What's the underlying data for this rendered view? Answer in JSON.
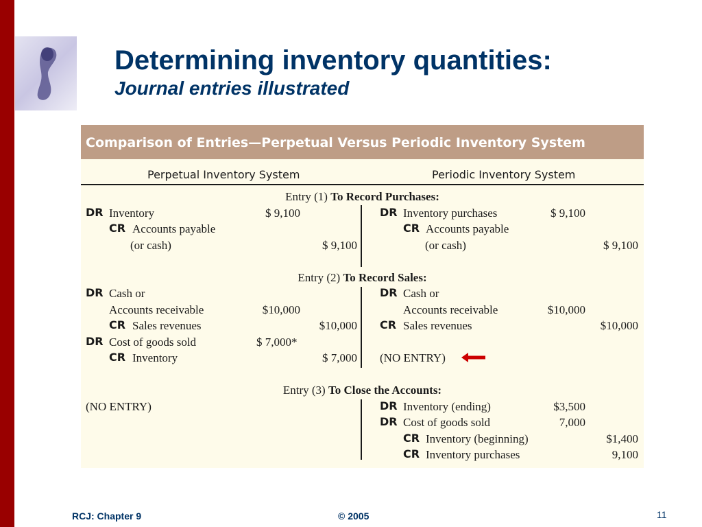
{
  "slide": {
    "title": "Determining inventory quantities:",
    "subtitle": "Journal entries illustrated"
  },
  "table": {
    "caption": "Comparison of Entries—Perpetual Versus Periodic Inventory System",
    "col_perpetual": "Perpetual Inventory System",
    "col_periodic": "Periodic Inventory System",
    "entry1": {
      "prefix": "Entry (1)",
      "label": "To Record Purchases:"
    },
    "entry2": {
      "prefix": "Entry (2)",
      "label": "To Record Sales:"
    },
    "entry3": {
      "prefix": "Entry (3)",
      "label": "To Close the Accounts:"
    },
    "dr": "DR",
    "cr": "CR",
    "perp": {
      "e1_inventory": "Inventory",
      "e1_inventory_amt": "$  9,100",
      "e1_ap": "Accounts payable",
      "e1_or_cash": "(or cash)",
      "e1_ap_amt": "$  9,100",
      "e2_cash_or": "Cash or",
      "e2_ar": "Accounts receivable",
      "e2_ar_amt": "$10,000",
      "e2_sales": "Sales revenues",
      "e2_sales_amt": "$10,000",
      "e2_cogs": "Cost of goods sold",
      "e2_cogs_amt": "$  7,000*",
      "e2_inventory": "Inventory",
      "e2_inventory_amt": "$  7,000",
      "e3_no_entry": "(NO ENTRY)"
    },
    "peri": {
      "e1_purchases": "Inventory purchases",
      "e1_purchases_amt": "$  9,100",
      "e1_ap": "Accounts payable",
      "e1_or_cash": "(or cash)",
      "e1_ap_amt": "$  9,100",
      "e2_cash_or": "Cash or",
      "e2_ar": "Accounts receivable",
      "e2_ar_amt": "$10,000",
      "e2_sales": "Sales revenues",
      "e2_sales_amt": "$10,000",
      "e2_no_entry": "(NO ENTRY)",
      "e3_inv_ending": "Inventory (ending)",
      "e3_inv_ending_amt": "$3,500",
      "e3_cogs": "Cost of goods sold",
      "e3_cogs_amt": "7,000",
      "e3_inv_beginning": "Inventory (beginning)",
      "e3_inv_beginning_amt": "$1,400",
      "e3_purchases": "Inventory purchases",
      "e3_purchases_amt": "9,100"
    }
  },
  "footer": {
    "left": "RCJ: Chapter 9",
    "center": "© 2005",
    "page": "11"
  },
  "colors": {
    "title": "#003366",
    "left_bar": "#990000",
    "table_header": "#be9d86",
    "table_body": "#fefbea",
    "arrow": "#cc0000"
  },
  "icons": {
    "logo": "keyhole-figure-logo",
    "arrow": "left-arrow-icon"
  }
}
